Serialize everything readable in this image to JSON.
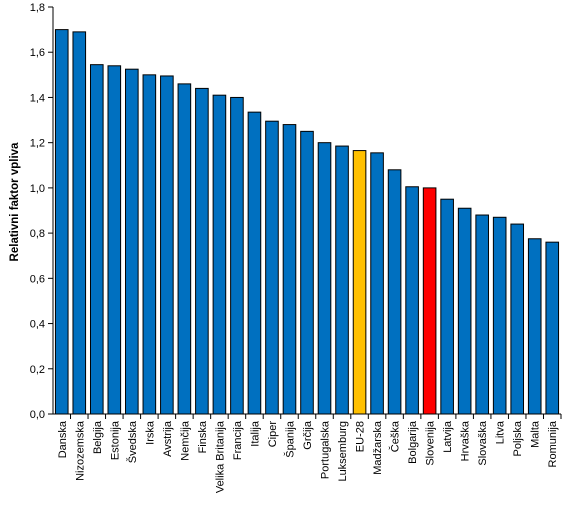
{
  "chart_data": {
    "type": "bar",
    "title": "",
    "xlabel": "",
    "ylabel": "Relativni faktor vpliva",
    "ylim": [
      0,
      1.8
    ],
    "yticks": [
      "0,0",
      "0,2",
      "0,4",
      "0,6",
      "0,8",
      "1,0",
      "1,2",
      "1,4",
      "1,6",
      "1,8"
    ],
    "grid": false,
    "legend": "none",
    "default_color": "#0070C0",
    "categories": [
      "Danska",
      "Nizozemska",
      "Belgija",
      "Estonija",
      "Švedska",
      "Irska",
      "Avstrija",
      "Nemčija",
      "Finska",
      "Velika Britanija",
      "Francija",
      "Italija",
      "Ciper",
      "Španija",
      "Grčija",
      "Portugalska",
      "Luksemburg",
      "EU-28",
      "Madžarska",
      "Češka",
      "Bolgarija",
      "Slovenija",
      "Latvija",
      "Hrvaška",
      "Slovaška",
      "Litva",
      "Poljska",
      "Malta",
      "Romunija"
    ],
    "values": [
      1.7,
      1.69,
      1.545,
      1.54,
      1.525,
      1.5,
      1.495,
      1.46,
      1.44,
      1.41,
      1.4,
      1.335,
      1.295,
      1.28,
      1.25,
      1.2,
      1.185,
      1.165,
      1.155,
      1.08,
      1.005,
      1.0,
      0.95,
      0.91,
      0.88,
      0.87,
      0.84,
      0.775,
      0.76
    ],
    "highlights": [
      {
        "category": "EU-28",
        "color": "#FFC000"
      },
      {
        "category": "Slovenija",
        "color": "#FF0000"
      }
    ]
  }
}
